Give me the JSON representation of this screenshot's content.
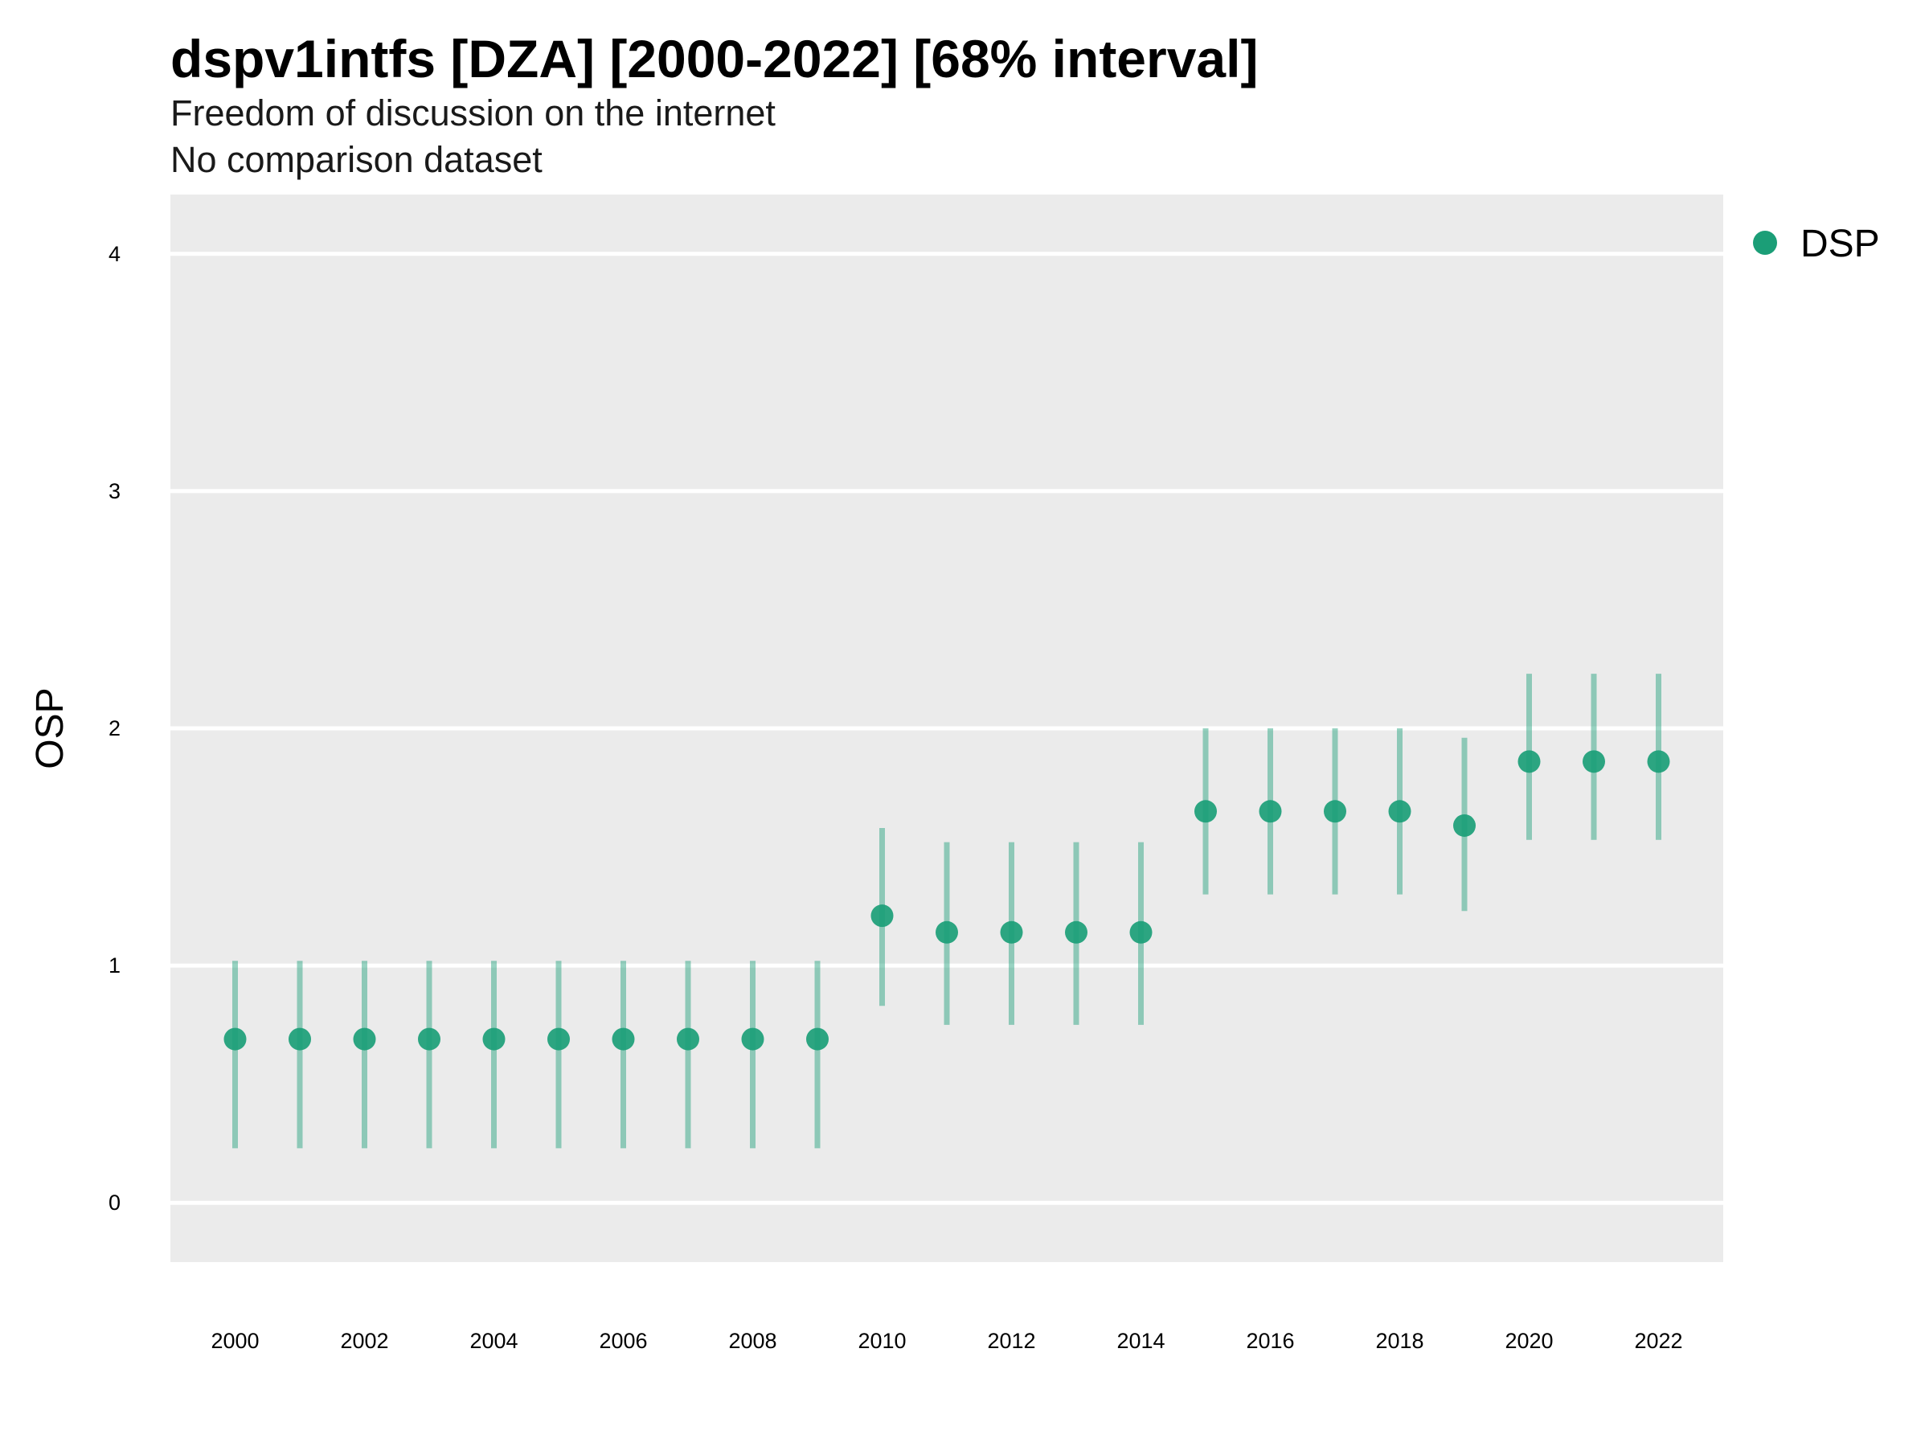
{
  "chart_data": {
    "type": "scatter",
    "title": "dspv1intfs [DZA] [2000-2022] [68% interval]",
    "subtitle": "Freedom of discussion on the internet",
    "caption": "No comparison dataset",
    "xlabel": "",
    "ylabel": "OSP",
    "xlim": [
      1999,
      2023
    ],
    "ylim": [
      -0.25,
      4.25
    ],
    "x_ticks": [
      2000,
      2002,
      2004,
      2006,
      2008,
      2010,
      2012,
      2014,
      2016,
      2018,
      2020,
      2022
    ],
    "y_ticks": [
      0,
      1,
      2,
      3,
      4
    ],
    "grid": true,
    "legend": {
      "placement": "top-right",
      "entries": [
        "DSP"
      ]
    },
    "series": [
      {
        "name": "DSP",
        "color": "#1b9e77",
        "x": [
          2000,
          2001,
          2002,
          2003,
          2004,
          2005,
          2006,
          2007,
          2008,
          2009,
          2010,
          2011,
          2012,
          2013,
          2014,
          2015,
          2016,
          2017,
          2018,
          2019,
          2020,
          2021,
          2022
        ],
        "y": [
          0.69,
          0.69,
          0.69,
          0.69,
          0.69,
          0.69,
          0.69,
          0.69,
          0.69,
          0.69,
          1.21,
          1.14,
          1.14,
          1.14,
          1.14,
          1.65,
          1.65,
          1.65,
          1.65,
          1.59,
          1.86,
          1.86,
          1.86
        ],
        "lower": [
          0.23,
          0.23,
          0.23,
          0.23,
          0.23,
          0.23,
          0.23,
          0.23,
          0.23,
          0.23,
          0.83,
          0.75,
          0.75,
          0.75,
          0.75,
          1.3,
          1.3,
          1.3,
          1.3,
          1.23,
          1.53,
          1.53,
          1.53
        ],
        "upper": [
          1.02,
          1.02,
          1.02,
          1.02,
          1.02,
          1.02,
          1.02,
          1.02,
          1.02,
          1.02,
          1.58,
          1.52,
          1.52,
          1.52,
          1.52,
          2.0,
          2.0,
          2.0,
          2.0,
          1.96,
          2.23,
          2.23,
          2.23
        ]
      }
    ]
  }
}
